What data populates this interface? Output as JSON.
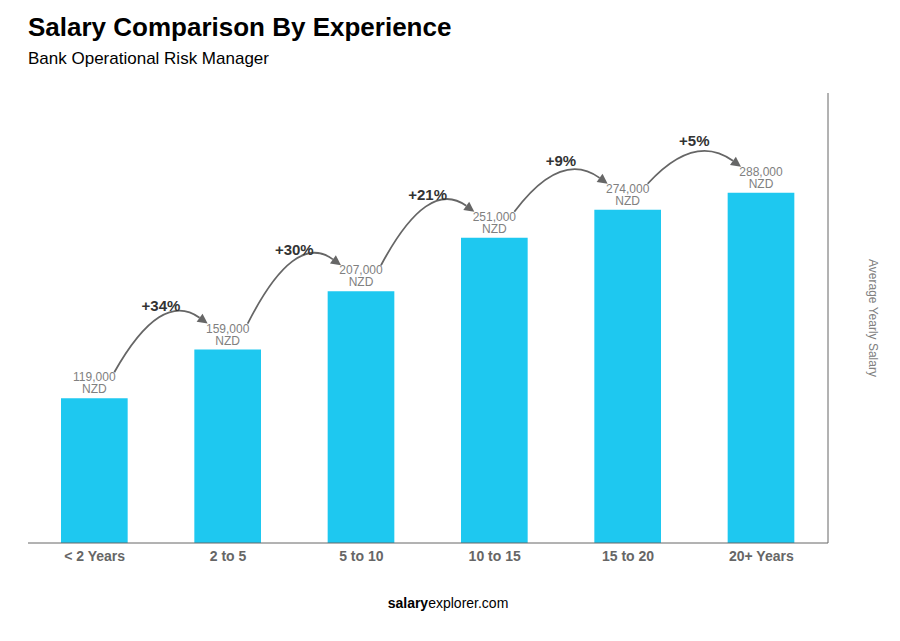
{
  "chart_data": {
    "type": "bar",
    "title": "Salary Comparison By Experience",
    "subtitle": "Bank Operational Risk Manager",
    "categories": [
      "< 2 Years",
      "2 to 5",
      "5 to 10",
      "10 to 15",
      "15 to 20",
      "20+ Years"
    ],
    "values": [
      119000,
      159000,
      207000,
      251000,
      274000,
      288000
    ],
    "value_labels": [
      "119,000 NZD",
      "159,000 NZD",
      "207,000 NZD",
      "251,000 NZD",
      "274,000 NZD",
      "288,000 NZD"
    ],
    "data_labels": true,
    "annotations": [
      "+34%",
      "+30%",
      "+21%",
      "+9%",
      "+5%"
    ],
    "ylabel": "Average Yearly Salary",
    "footer": [
      "salary",
      "explorer.com"
    ],
    "color": "#1ec8f0",
    "ylim": [
      0,
      370000
    ],
    "tick_labels": "x",
    "grid": false
  }
}
